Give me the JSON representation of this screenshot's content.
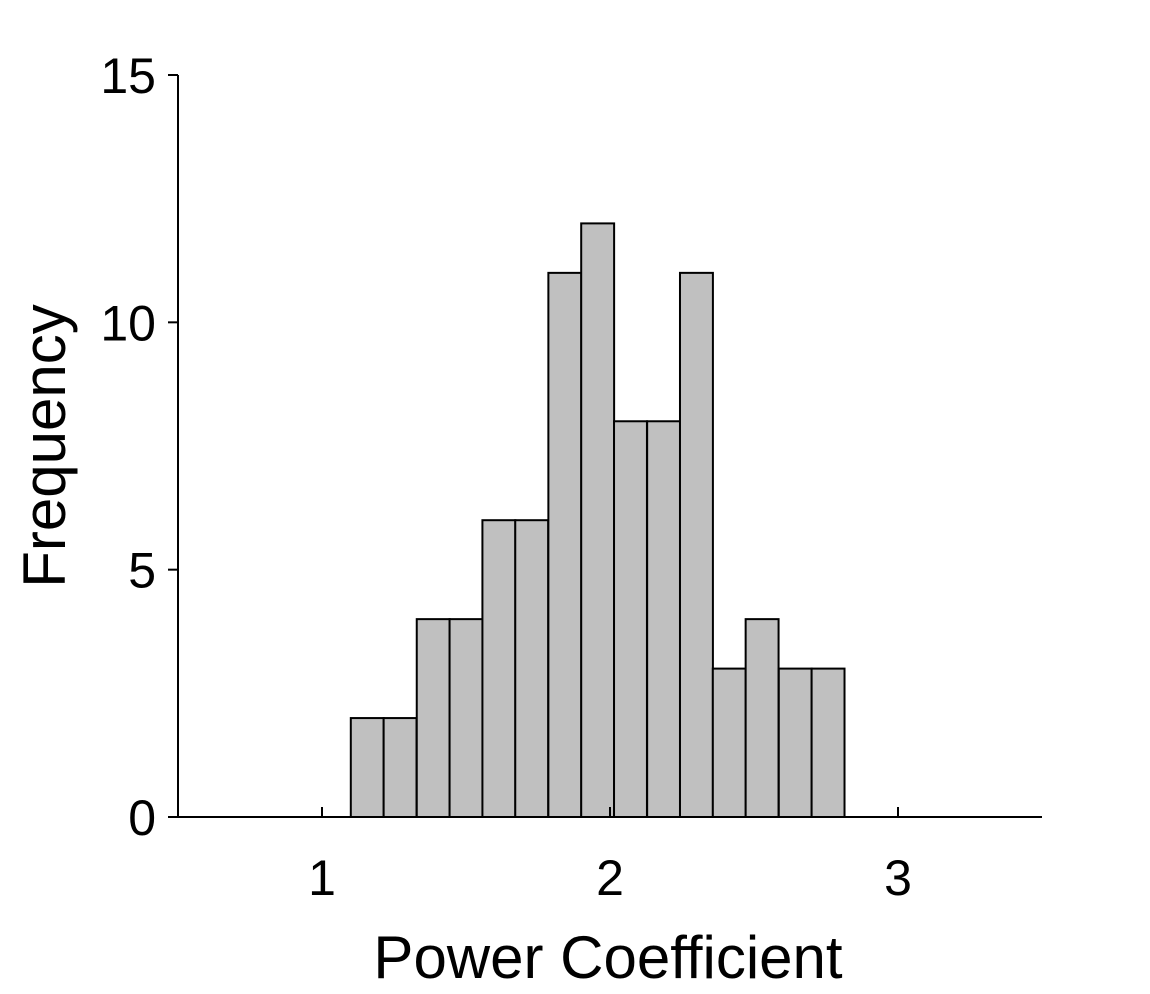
{
  "chart_data": {
    "type": "bar",
    "xlabel": "Power Coefficient",
    "ylabel": "Frequency",
    "xlim": [
      0.5,
      3.5
    ],
    "ylim": [
      0,
      15
    ],
    "xticks": [
      1,
      2,
      3
    ],
    "yticks": [
      0,
      5,
      10,
      15
    ],
    "bin_width": 0.1143,
    "bins": [
      {
        "start": 1.1,
        "count": 2
      },
      {
        "start": 1.214,
        "count": 2
      },
      {
        "start": 1.329,
        "count": 4
      },
      {
        "start": 1.443,
        "count": 4
      },
      {
        "start": 1.557,
        "count": 6
      },
      {
        "start": 1.671,
        "count": 6
      },
      {
        "start": 1.786,
        "count": 11
      },
      {
        "start": 1.9,
        "count": 12
      },
      {
        "start": 2.014,
        "count": 8
      },
      {
        "start": 2.129,
        "count": 8
      },
      {
        "start": 2.243,
        "count": 11
      },
      {
        "start": 2.357,
        "count": 3
      },
      {
        "start": 2.471,
        "count": 4
      },
      {
        "start": 2.586,
        "count": 3
      },
      {
        "start": 2.7,
        "count": 3
      }
    ],
    "bar_fill": "#c0c0c0",
    "bar_stroke": "#000000",
    "grid": false
  }
}
